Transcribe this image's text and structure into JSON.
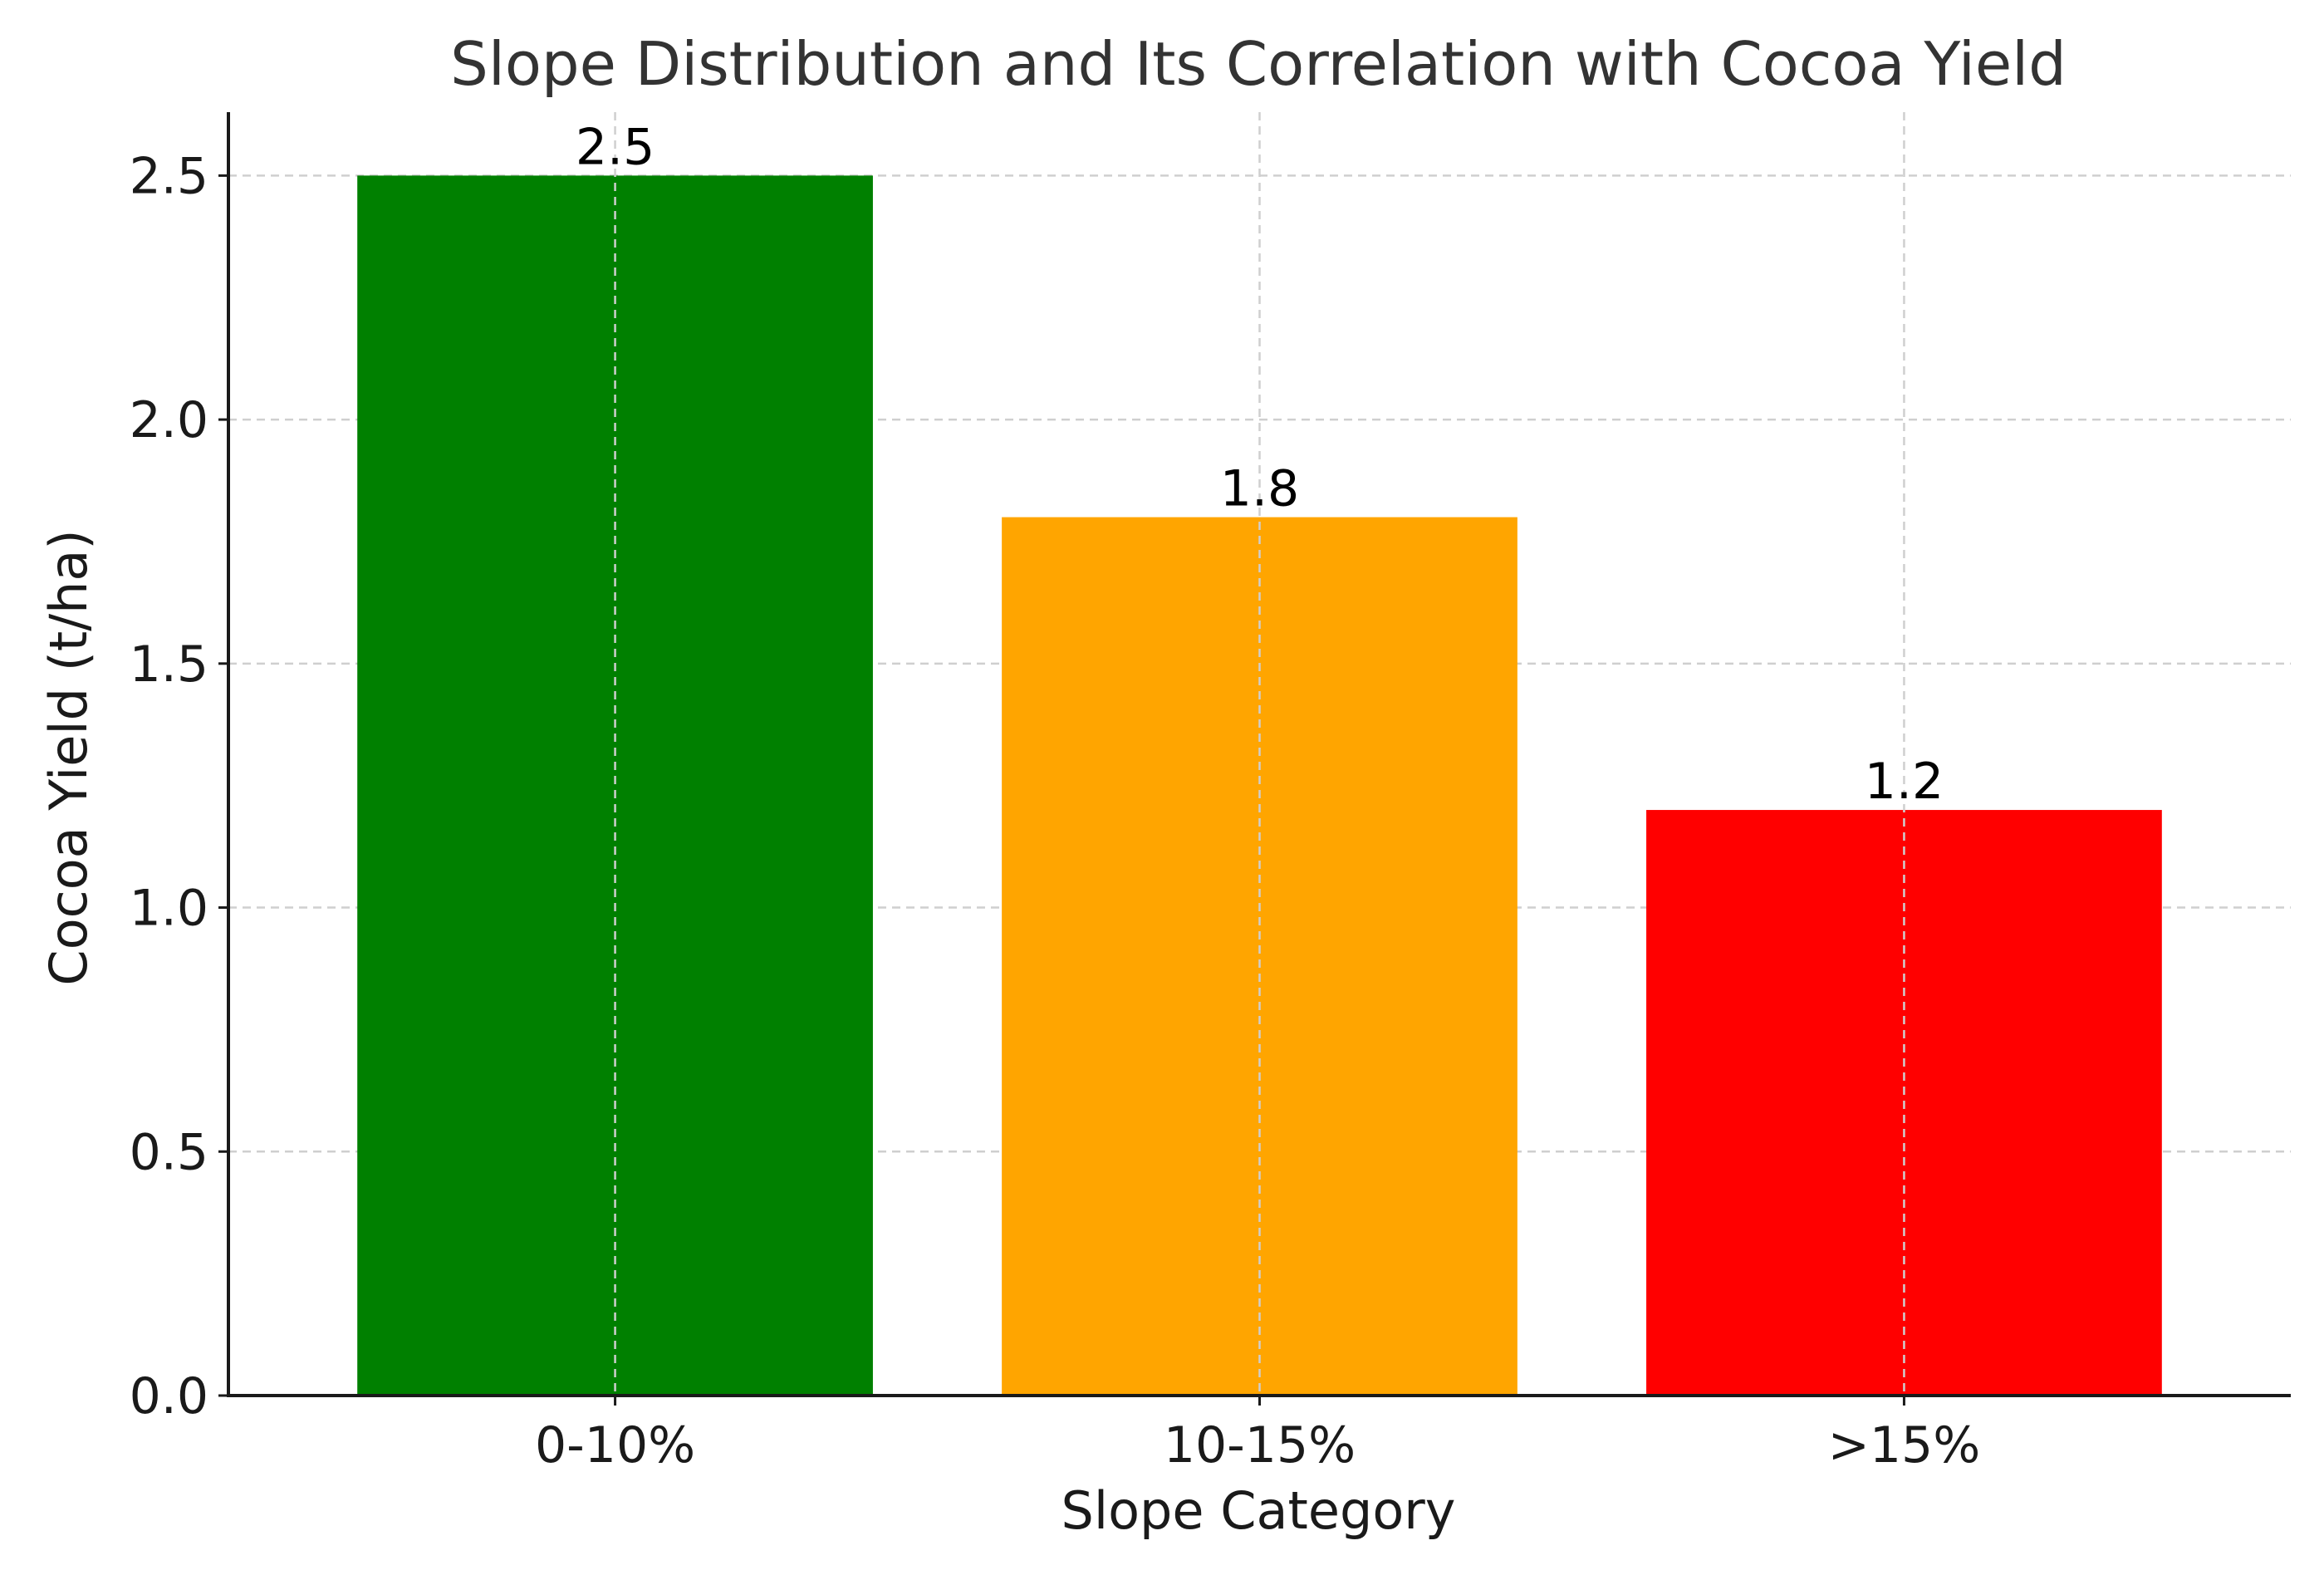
{
  "chart_data": {
    "type": "bar",
    "title": "Slope Distribution and Its Correlation with Cocoa Yield",
    "xlabel": "Slope Category",
    "ylabel": "Cocoa Yield (t/ha)",
    "categories": [
      "0-10%",
      "10-15%",
      ">15%"
    ],
    "values": [
      2.5,
      1.8,
      1.2
    ],
    "data_labels": [
      "2.5",
      "1.8",
      "1.2"
    ],
    "bar_colors": [
      "#008000",
      "#FFA500",
      "#FF0000"
    ],
    "ylim": [
      0,
      2.63
    ],
    "yticks": [
      0.0,
      0.5,
      1.0,
      1.5,
      2.0,
      2.5
    ],
    "ytick_labels": [
      "0.0",
      "0.5",
      "1.0",
      "1.5",
      "2.0",
      "2.5"
    ],
    "grid": true,
    "legend": "none"
  }
}
